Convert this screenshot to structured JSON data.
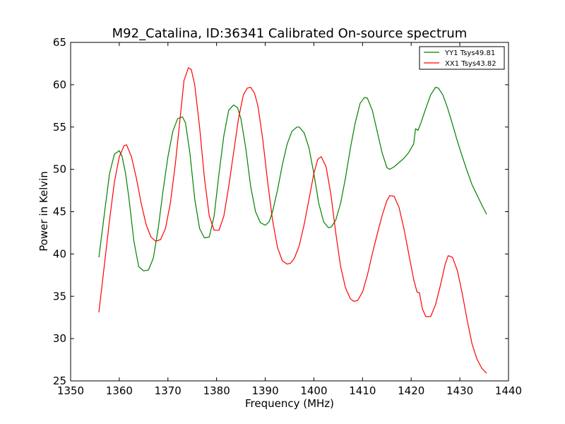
{
  "chart_data": {
    "type": "line",
    "title": "M92_Catalina, ID:36341 Calibrated On-source spectrum",
    "xlabel": "Frequency (MHz)",
    "ylabel": "Power in Kelvin",
    "xlim": [
      1350,
      1440
    ],
    "ylim": [
      25,
      65
    ],
    "xticks": [
      1350,
      1360,
      1370,
      1380,
      1390,
      1400,
      1410,
      1420,
      1430,
      1440
    ],
    "yticks": [
      25,
      30,
      35,
      40,
      45,
      50,
      55,
      60,
      65
    ],
    "grid": false,
    "legend_position": "top-right",
    "series": [
      {
        "name": "YY1 Tsys49.81",
        "color": "#008000",
        "x": [
          1355.8,
          1357.0,
          1358.0,
          1359.0,
          1360.0,
          1360.6,
          1361.3,
          1362.0,
          1363.0,
          1364.0,
          1365.0,
          1366.0,
          1367.0,
          1368.0,
          1369.0,
          1370.0,
          1371.0,
          1372.0,
          1373.0,
          1373.6,
          1374.5,
          1375.5,
          1376.5,
          1377.5,
          1378.5,
          1379.5,
          1380.5,
          1381.5,
          1382.5,
          1383.5,
          1384.3,
          1385.0,
          1386.0,
          1387.0,
          1388.0,
          1389.0,
          1390.0,
          1390.8,
          1391.5,
          1392.5,
          1393.5,
          1394.5,
          1395.5,
          1396.5,
          1397.0,
          1398.0,
          1399.0,
          1400.0,
          1401.0,
          1402.0,
          1403.0,
          1403.6,
          1404.5,
          1405.5,
          1406.5,
          1407.5,
          1408.5,
          1409.5,
          1410.4,
          1411.0,
          1412.0,
          1413.0,
          1414.0,
          1415.0,
          1415.6,
          1416.5,
          1417.5,
          1418.5,
          1419.5,
          1420.5,
          1420.9,
          1421.4,
          1422.0,
          1423.0,
          1424.0,
          1425.0,
          1425.6,
          1426.5,
          1427.5,
          1428.5,
          1429.5,
          1430.5,
          1431.5,
          1432.5,
          1433.5,
          1434.5,
          1435.5
        ],
        "values": [
          39.6,
          45.0,
          49.5,
          51.8,
          52.2,
          51.5,
          49.5,
          46.5,
          41.5,
          38.5,
          38.0,
          38.1,
          39.5,
          43.0,
          47.5,
          51.5,
          54.5,
          56.0,
          56.2,
          55.5,
          52.0,
          46.5,
          43.0,
          41.9,
          42.0,
          44.5,
          49.5,
          54.0,
          57.0,
          57.6,
          57.3,
          56.0,
          52.5,
          48.0,
          45.0,
          43.7,
          43.4,
          43.8,
          45.0,
          47.5,
          50.5,
          53.0,
          54.5,
          55.0,
          55.0,
          54.3,
          52.5,
          49.5,
          46.0,
          43.8,
          43.1,
          43.2,
          44.0,
          46.0,
          49.0,
          52.5,
          55.5,
          57.8,
          58.5,
          58.4,
          57.0,
          54.5,
          52.0,
          50.2,
          50.0,
          50.3,
          50.8,
          51.3,
          52.0,
          53.0,
          54.8,
          54.6,
          55.5,
          57.2,
          58.8,
          59.7,
          59.6,
          58.8,
          57.2,
          55.3,
          53.3,
          51.5,
          49.8,
          48.2,
          47.0,
          45.8,
          44.7
        ]
      },
      {
        "name": "XX1 Tsys43.82",
        "color": "#ff0000",
        "x": [
          1355.8,
          1357.0,
          1358.0,
          1359.0,
          1360.0,
          1361.0,
          1361.5,
          1362.5,
          1363.5,
          1364.5,
          1365.5,
          1366.5,
          1367.5,
          1368.5,
          1369.5,
          1370.5,
          1371.5,
          1372.5,
          1373.3,
          1374.2,
          1374.8,
          1375.5,
          1376.5,
          1377.5,
          1378.5,
          1379.5,
          1380.5,
          1381.5,
          1382.5,
          1383.5,
          1384.5,
          1385.5,
          1386.3,
          1387.0,
          1387.8,
          1388.5,
          1389.5,
          1390.5,
          1391.5,
          1392.5,
          1393.5,
          1394.5,
          1395.2,
          1396.0,
          1397.0,
          1398.0,
          1399.0,
          1400.0,
          1400.8,
          1401.5,
          1402.5,
          1403.5,
          1404.5,
          1405.5,
          1406.5,
          1407.5,
          1408.2,
          1409.0,
          1410.0,
          1411.0,
          1412.0,
          1413.0,
          1414.0,
          1415.0,
          1415.6,
          1416.5,
          1417.5,
          1418.5,
          1419.5,
          1420.5,
          1421.2,
          1421.7,
          1422.3,
          1423.0,
          1424.0,
          1425.0,
          1426.0,
          1427.0,
          1427.6,
          1428.5,
          1429.5,
          1430.5,
          1431.5,
          1432.5,
          1433.5,
          1434.5,
          1435.5
        ],
        "values": [
          33.1,
          39.0,
          44.0,
          48.5,
          51.5,
          52.8,
          52.9,
          51.5,
          49.0,
          46.0,
          43.5,
          42.0,
          41.5,
          41.7,
          43.0,
          46.0,
          50.5,
          56.0,
          60.5,
          62.0,
          61.8,
          60.0,
          55.0,
          49.0,
          44.5,
          42.8,
          42.8,
          44.5,
          48.0,
          52.0,
          56.0,
          58.8,
          59.6,
          59.7,
          59.0,
          57.5,
          53.5,
          48.5,
          44.0,
          40.8,
          39.2,
          38.8,
          38.9,
          39.5,
          41.0,
          43.5,
          46.5,
          49.5,
          51.2,
          51.5,
          50.3,
          47.0,
          42.5,
          38.5,
          36.0,
          34.7,
          34.4,
          34.5,
          35.5,
          37.5,
          40.0,
          42.3,
          44.5,
          46.3,
          46.9,
          46.8,
          45.5,
          43.0,
          40.0,
          37.0,
          35.5,
          35.4,
          33.5,
          32.6,
          32.6,
          34.0,
          36.3,
          38.8,
          39.8,
          39.6,
          38.0,
          35.3,
          32.2,
          29.4,
          27.6,
          26.5,
          25.9
        ]
      }
    ]
  }
}
